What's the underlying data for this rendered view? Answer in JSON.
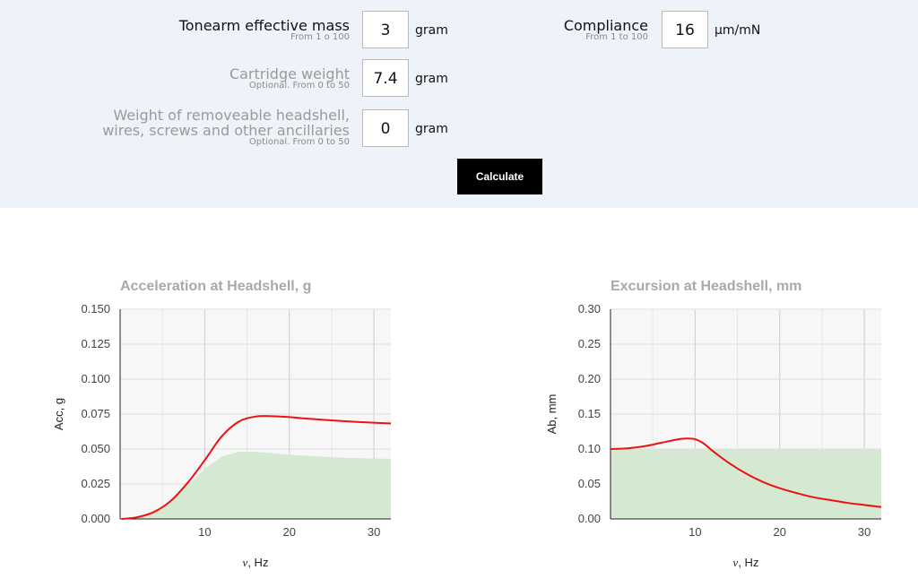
{
  "form": {
    "tonearm": {
      "label": "Tonearm effective mass",
      "hint": "From 1 o 100",
      "value": "3",
      "unit": "gram"
    },
    "compliance": {
      "label": "Compliance",
      "hint": "From 1 to 100",
      "value": "16",
      "unit": "µm/mN"
    },
    "cartridge": {
      "label": "Cartridge weight",
      "hint": "Optional. From 0 to 50",
      "value": "7.4",
      "unit": "gram"
    },
    "headshell": {
      "label_line1": "Weight of removeable headshell,",
      "label_line2": "wires, screws and other ancillaries",
      "hint": "Optional. From 0 to 50",
      "value": "0",
      "unit": "gram"
    },
    "calculate_label": "Calculate"
  },
  "colors": {
    "panel_bg": "#eef3f9",
    "plot_bg": "#f7f7f7",
    "line": "#ee1111",
    "area": "#d4e8d2",
    "grid": "#d7d7d7"
  },
  "chart_data": [
    {
      "type": "line",
      "title": "Acceleration at Headshell, g",
      "xlabel_symbol": "ν",
      "xlabel_unit": ", Hz",
      "ylabel": "Acc, g",
      "xlim": [
        0,
        32
      ],
      "ylim": [
        0,
        0.15
      ],
      "xticks": [
        10,
        20,
        30
      ],
      "yticks": [
        "0.000",
        "0.025",
        "0.050",
        "0.075",
        "0.100",
        "0.125",
        "0.150"
      ],
      "series": [
        {
          "kind": "line",
          "x": [
            0.2,
            2,
            4,
            6,
            8,
            10,
            12,
            14,
            16,
            18,
            20,
            22,
            24,
            26,
            28,
            30,
            32
          ],
          "y": [
            0.0,
            0.0012,
            0.005,
            0.013,
            0.026,
            0.042,
            0.059,
            0.0695,
            0.0732,
            0.0735,
            0.0728,
            0.0718,
            0.0709,
            0.0701,
            0.0694,
            0.0688,
            0.0683
          ]
        },
        {
          "kind": "area",
          "x": [
            0.2,
            2,
            4,
            6,
            8,
            10,
            12,
            14,
            16,
            18,
            20,
            22,
            24,
            26,
            28,
            30,
            32
          ],
          "y": [
            0.0,
            0.0012,
            0.005,
            0.013,
            0.024,
            0.036,
            0.0445,
            0.048,
            0.048,
            0.047,
            0.046,
            0.0452,
            0.0445,
            0.0439,
            0.0435,
            0.0432,
            0.043
          ]
        }
      ]
    },
    {
      "type": "line",
      "title": "Excursion at Headshell, mm",
      "xlabel_symbol": "ν",
      "xlabel_unit": ", Hz",
      "ylabel": "Ab, mm",
      "xlim": [
        0,
        32
      ],
      "ylim": [
        0,
        0.3
      ],
      "xticks": [
        10,
        20,
        30
      ],
      "yticks": [
        "0.00",
        "0.05",
        "0.10",
        "0.15",
        "0.20",
        "0.25",
        "0.30"
      ],
      "series": [
        {
          "kind": "line",
          "x": [
            0,
            2,
            4,
            6,
            8,
            9,
            10,
            11,
            12,
            14,
            16,
            18,
            20,
            22,
            24,
            26,
            28,
            30,
            32
          ],
          "y": [
            0.1,
            0.101,
            0.104,
            0.109,
            0.114,
            0.115,
            0.114,
            0.108,
            0.098,
            0.08,
            0.065,
            0.053,
            0.044,
            0.037,
            0.031,
            0.027,
            0.023,
            0.02,
            0.017
          ]
        },
        {
          "kind": "area",
          "x": [
            0,
            32
          ],
          "y": [
            0.1,
            0.1
          ]
        }
      ]
    }
  ]
}
